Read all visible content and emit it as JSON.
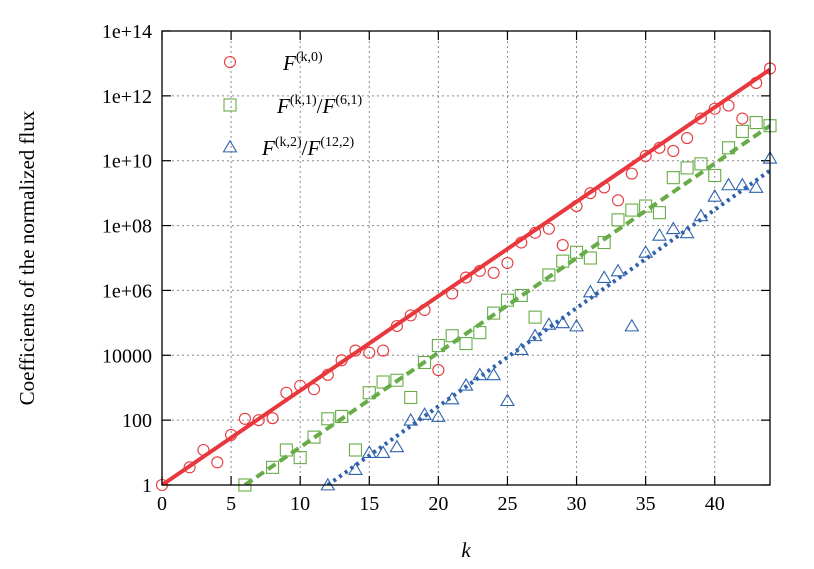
{
  "chart_data": {
    "type": "scatter",
    "xlabel": "k",
    "ylabel": "Coefficients of the normalized flux",
    "xlim": [
      0,
      44
    ],
    "ylim": [
      1,
      100000000000000.0
    ],
    "y_scale": "log",
    "grid": true,
    "legend_placement": "top-left",
    "x_ticks": [
      0,
      5,
      10,
      15,
      20,
      25,
      30,
      35,
      40
    ],
    "x_tick_labels": [
      "0",
      "5",
      "10",
      "15",
      "20",
      "25",
      "30",
      "35",
      "40"
    ],
    "y_ticks": [
      1,
      100,
      10000,
      1000000.0,
      100000000.0,
      10000000000.0,
      1000000000000.0,
      100000000000000.0
    ],
    "y_tick_labels": [
      "1",
      "100",
      "10000",
      "1e+06",
      "1e+08",
      "1e+10",
      "1e+12",
      "1e+14"
    ],
    "series": [
      {
        "legend_parts": [
          {
            "text": "F",
            "style": "it"
          },
          {
            "text": "(k,0)",
            "style": "sup"
          }
        ],
        "color": "#e8383d",
        "marker": "circle",
        "line_style": "solid",
        "fit": {
          "x": [
            0,
            44
          ],
          "y": [
            1,
            6500000000000.0
          ]
        },
        "points": [
          {
            "x": 0,
            "y": 1
          },
          {
            "x": 2,
            "y": 3.5
          },
          {
            "x": 3,
            "y": 12
          },
          {
            "x": 4,
            "y": 5
          },
          {
            "x": 5,
            "y": 35
          },
          {
            "x": 6,
            "y": 110
          },
          {
            "x": 7,
            "y": 100
          },
          {
            "x": 8,
            "y": 115
          },
          {
            "x": 9,
            "y": 700
          },
          {
            "x": 10,
            "y": 1150
          },
          {
            "x": 11,
            "y": 900
          },
          {
            "x": 12,
            "y": 2500
          },
          {
            "x": 13,
            "y": 7000
          },
          {
            "x": 14,
            "y": 14000
          },
          {
            "x": 15,
            "y": 12000
          },
          {
            "x": 16,
            "y": 14000
          },
          {
            "x": 17,
            "y": 80000
          },
          {
            "x": 18,
            "y": 170000
          },
          {
            "x": 19,
            "y": 250000
          },
          {
            "x": 20,
            "y": 3500
          },
          {
            "x": 21,
            "y": 800000
          },
          {
            "x": 22,
            "y": 2500000
          },
          {
            "x": 23,
            "y": 4000000
          },
          {
            "x": 24,
            "y": 3500000
          },
          {
            "x": 25,
            "y": 7000000
          },
          {
            "x": 26,
            "y": 30000000
          },
          {
            "x": 27,
            "y": 60000000
          },
          {
            "x": 28,
            "y": 80000000
          },
          {
            "x": 29,
            "y": 25000000
          },
          {
            "x": 30,
            "y": 400000000
          },
          {
            "x": 31,
            "y": 1000000000
          },
          {
            "x": 32,
            "y": 1500000000
          },
          {
            "x": 33,
            "y": 600000000
          },
          {
            "x": 34,
            "y": 4000000000
          },
          {
            "x": 35,
            "y": 14000000000
          },
          {
            "x": 36,
            "y": 25000000000
          },
          {
            "x": 37,
            "y": 20000000000
          },
          {
            "x": 38,
            "y": 50000000000
          },
          {
            "x": 39,
            "y": 200000000000
          },
          {
            "x": 40,
            "y": 400000000000
          },
          {
            "x": 41,
            "y": 500000000000
          },
          {
            "x": 42,
            "y": 200000000000
          },
          {
            "x": 43,
            "y": 2500000000000
          },
          {
            "x": 44,
            "y": 7000000000000
          }
        ]
      },
      {
        "legend_parts": [
          {
            "text": "F",
            "style": "it"
          },
          {
            "text": "(k,1)",
            "style": "sup"
          },
          {
            "text": "/",
            "style": "normal"
          },
          {
            "text": "F",
            "style": "it"
          },
          {
            "text": "(6,1)",
            "style": "sup"
          }
        ],
        "color": "#67ac48",
        "marker": "square",
        "line_style": "dashed",
        "fit": {
          "x": [
            6,
            44
          ],
          "y": [
            1,
            120000000000.0
          ]
        },
        "points": [
          {
            "x": 6,
            "y": 1
          },
          {
            "x": 8,
            "y": 3.5
          },
          {
            "x": 9,
            "y": 12
          },
          {
            "x": 10,
            "y": 7
          },
          {
            "x": 11,
            "y": 30
          },
          {
            "x": 12,
            "y": 110
          },
          {
            "x": 13,
            "y": 130
          },
          {
            "x": 14,
            "y": 12
          },
          {
            "x": 15,
            "y": 700
          },
          {
            "x": 16,
            "y": 1500
          },
          {
            "x": 17,
            "y": 1700
          },
          {
            "x": 18,
            "y": 500
          },
          {
            "x": 19,
            "y": 6000
          },
          {
            "x": 20,
            "y": 20000
          },
          {
            "x": 21,
            "y": 40000
          },
          {
            "x": 22,
            "y": 23000
          },
          {
            "x": 23,
            "y": 50000
          },
          {
            "x": 24,
            "y": 200000
          },
          {
            "x": 25,
            "y": 500000
          },
          {
            "x": 26,
            "y": 700000
          },
          {
            "x": 27,
            "y": 150000
          },
          {
            "x": 28,
            "y": 3000000
          },
          {
            "x": 29,
            "y": 8000000
          },
          {
            "x": 30,
            "y": 15000000
          },
          {
            "x": 31,
            "y": 10000000
          },
          {
            "x": 32,
            "y": 30000000
          },
          {
            "x": 33,
            "y": 150000000
          },
          {
            "x": 34,
            "y": 300000000
          },
          {
            "x": 35,
            "y": 400000000
          },
          {
            "x": 36,
            "y": 250000000
          },
          {
            "x": 37,
            "y": 3000000000
          },
          {
            "x": 38,
            "y": 6000000000
          },
          {
            "x": 39,
            "y": 8000000000
          },
          {
            "x": 40,
            "y": 3500000000
          },
          {
            "x": 41,
            "y": 25000000000
          },
          {
            "x": 42,
            "y": 80000000000
          },
          {
            "x": 43,
            "y": 150000000000
          },
          {
            "x": 44,
            "y": 120000000000
          }
        ]
      },
      {
        "legend_parts": [
          {
            "text": "F",
            "style": "it"
          },
          {
            "text": "(k,2)",
            "style": "sup"
          },
          {
            "text": "/",
            "style": "normal"
          },
          {
            "text": "F",
            "style": "it"
          },
          {
            "text": "(12,2)",
            "style": "sup"
          }
        ],
        "color": "#2f62ac",
        "marker": "triangle",
        "line_style": "dotted",
        "fit": {
          "x": [
            12,
            44
          ],
          "y": [
            1,
            5000000000.0
          ]
        },
        "points": [
          {
            "x": 12,
            "y": 1
          },
          {
            "x": 14,
            "y": 3
          },
          {
            "x": 15,
            "y": 10
          },
          {
            "x": 16,
            "y": 10
          },
          {
            "x": 17,
            "y": 15
          },
          {
            "x": 18,
            "y": 100
          },
          {
            "x": 19,
            "y": 150
          },
          {
            "x": 20,
            "y": 130
          },
          {
            "x": 21,
            "y": 450
          },
          {
            "x": 22,
            "y": 1200
          },
          {
            "x": 23,
            "y": 2500
          },
          {
            "x": 24,
            "y": 2500
          },
          {
            "x": 25,
            "y": 400
          },
          {
            "x": 26,
            "y": 15000
          },
          {
            "x": 27,
            "y": 40000
          },
          {
            "x": 28,
            "y": 90000
          },
          {
            "x": 29,
            "y": 100000
          },
          {
            "x": 30,
            "y": 80000
          },
          {
            "x": 31,
            "y": 900000
          },
          {
            "x": 32,
            "y": 2500000
          },
          {
            "x": 33,
            "y": 4000000
          },
          {
            "x": 34,
            "y": 80000
          },
          {
            "x": 35,
            "y": 15000000
          },
          {
            "x": 36,
            "y": 50000000
          },
          {
            "x": 37,
            "y": 80000000
          },
          {
            "x": 38,
            "y": 60000000
          },
          {
            "x": 39,
            "y": 200000000
          },
          {
            "x": 40,
            "y": 800000000
          },
          {
            "x": 41,
            "y": 1800000000
          },
          {
            "x": 42,
            "y": 1800000000
          },
          {
            "x": 43,
            "y": 1500000000
          },
          {
            "x": 44,
            "y": 12000000000
          }
        ]
      }
    ]
  }
}
